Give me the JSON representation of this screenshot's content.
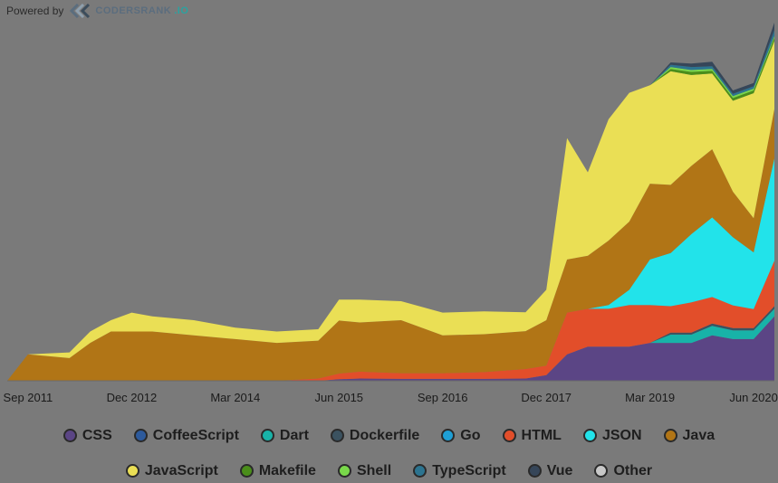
{
  "header": {
    "powered_label": "Powered by",
    "brand_name": "CODERSRANK",
    "brand_suffix": ".IO",
    "logo_icon": "codersrank-logo-icon"
  },
  "chart_data": {
    "type": "area",
    "stacked": true,
    "title": "",
    "xlabel": "",
    "ylabel": "",
    "x_ticks": [
      "Sep 2011",
      "Dec 2012",
      "Mar 2014",
      "Jun 2015",
      "Sep 2016",
      "Dec 2017",
      "Mar 2019",
      "Jun 2020"
    ],
    "x": [
      "2011-06",
      "2011-09",
      "2012-03",
      "2012-06",
      "2012-09",
      "2012-12",
      "2013-03",
      "2013-09",
      "2014-03",
      "2014-09",
      "2015-03",
      "2015-06",
      "2015-09",
      "2016-03",
      "2016-09",
      "2017-03",
      "2017-09",
      "2017-12",
      "2018-03",
      "2018-06",
      "2018-09",
      "2018-12",
      "2019-03",
      "2019-06",
      "2019-09",
      "2019-12",
      "2020-03",
      "2020-06",
      "2020-09"
    ],
    "ylim": [
      0,
      100
    ],
    "grid": false,
    "legend_position": "bottom",
    "series": [
      {
        "name": "CSS",
        "color": "#5b4585",
        "values": [
          0,
          0,
          0,
          0,
          0,
          0,
          0,
          0,
          0,
          0,
          0,
          0.4,
          0.6,
          0.5,
          0.5,
          0.5,
          0.6,
          1.5,
          7,
          9,
          9,
          9,
          10,
          10,
          10,
          12,
          11,
          11,
          17
        ]
      },
      {
        "name": "CoffeeScript",
        "color": "#2d5a9c",
        "values": [
          0,
          0,
          0,
          0,
          0,
          0,
          0,
          0,
          0,
          0,
          0,
          0,
          0,
          0,
          0,
          0,
          0,
          0,
          0,
          0,
          0,
          0,
          0,
          0,
          0,
          0,
          0,
          0,
          0
        ]
      },
      {
        "name": "Dart",
        "color": "#18b3a8",
        "values": [
          0,
          0,
          0,
          0,
          0,
          0,
          0,
          0,
          0,
          0,
          0,
          0,
          0,
          0,
          0,
          0,
          0,
          0,
          0,
          0,
          0,
          0,
          0,
          2.2,
          2.2,
          2.5,
          2.3,
          2.3,
          2
        ]
      },
      {
        "name": "Dockerfile",
        "color": "#3b5260",
        "values": [
          0,
          0,
          0,
          0,
          0,
          0,
          0,
          0,
          0,
          0,
          0,
          0,
          0,
          0,
          0,
          0,
          0,
          0,
          0,
          0,
          0,
          0,
          0,
          0.5,
          0.5,
          0.6,
          0.6,
          0.6,
          0.7
        ]
      },
      {
        "name": "Go",
        "color": "#1e9fd6",
        "values": [
          0,
          0,
          0,
          0,
          0,
          0,
          0,
          0,
          0,
          0,
          0,
          0,
          0,
          0,
          0,
          0,
          0,
          0,
          0,
          0,
          0,
          0,
          0,
          0,
          0,
          0,
          0,
          0,
          0
        ]
      },
      {
        "name": "HTML",
        "color": "#e24e2a",
        "values": [
          0,
          0,
          0,
          0,
          0,
          0,
          0,
          0,
          0,
          0,
          0.6,
          1.5,
          1.8,
          1.5,
          1.5,
          1.8,
          2.5,
          2.5,
          11,
          10,
          10,
          11,
          10,
          7,
          8,
          7,
          6,
          5,
          12
        ]
      },
      {
        "name": "JSON",
        "color": "#22e3ea",
        "values": [
          0,
          0,
          0,
          0,
          0,
          0,
          0,
          0,
          0,
          0,
          0,
          0,
          0,
          0,
          0,
          0,
          0,
          0,
          0,
          0,
          1,
          4,
          12,
          14,
          18,
          21,
          18,
          15,
          27
        ]
      },
      {
        "name": "Java",
        "color": "#b17516",
        "values": [
          0,
          7,
          6,
          10,
          13,
          13,
          13,
          12,
          11,
          10,
          10,
          14,
          13,
          14,
          10,
          10,
          10,
          12,
          14,
          14,
          17,
          18,
          20,
          18,
          18,
          18,
          12,
          9,
          13
        ]
      },
      {
        "name": "JavaScript",
        "color": "#eadf55",
        "values": [
          0,
          0,
          1.5,
          3,
          3,
          5,
          4,
          4,
          3,
          3,
          3,
          5.5,
          6,
          5,
          6,
          6,
          5,
          8,
          32,
          22,
          32,
          34,
          26,
          30,
          24,
          20,
          24,
          33,
          18
        ]
      },
      {
        "name": "Makefile",
        "color": "#4a8e1a",
        "values": [
          0,
          0,
          0,
          0,
          0,
          0,
          0,
          0,
          0,
          0,
          0,
          0,
          0,
          0,
          0,
          0,
          0,
          0,
          0,
          0,
          0,
          0,
          0,
          0.6,
          0.8,
          0.7,
          0.7,
          0.7,
          0.8
        ]
      },
      {
        "name": "Shell",
        "color": "#79d84a",
        "values": [
          0,
          0,
          0,
          0,
          0,
          0,
          0,
          0,
          0,
          0,
          0,
          0,
          0,
          0,
          0,
          0,
          0,
          0,
          0,
          0,
          0,
          0,
          0,
          0.5,
          0.5,
          0.5,
          0.5,
          0.5,
          0.5
        ]
      },
      {
        "name": "TypeScript",
        "color": "#2c7490",
        "values": [
          0,
          0,
          0,
          0,
          0,
          0,
          0,
          0,
          0,
          0,
          0,
          0,
          0,
          0,
          0,
          0,
          0,
          0,
          0,
          0,
          0,
          0,
          0,
          0.6,
          0.8,
          0.7,
          0.6,
          0.6,
          1.5
        ]
      },
      {
        "name": "Vue",
        "color": "#364659",
        "values": [
          0,
          0,
          0,
          0,
          0,
          0,
          0,
          0,
          0,
          0,
          0,
          0,
          0,
          0,
          0,
          0,
          0,
          0,
          0,
          0,
          0,
          0,
          0,
          0.6,
          0.9,
          1.2,
          0.9,
          0.9,
          2
        ]
      },
      {
        "name": "Other",
        "color": "#c8c8c8",
        "values": [
          0,
          0,
          0,
          0,
          0,
          0,
          0,
          0,
          0,
          0,
          0,
          0,
          0,
          0,
          0,
          0,
          0,
          0,
          0,
          0,
          0,
          0,
          0,
          0,
          0,
          0,
          0,
          0,
          0
        ]
      }
    ]
  }
}
